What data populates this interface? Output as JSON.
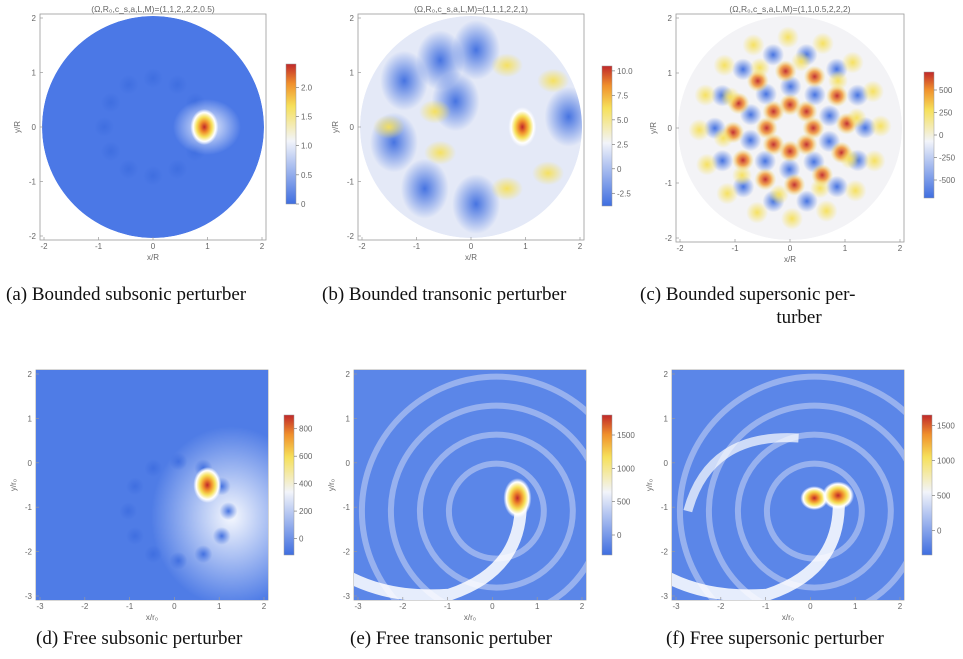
{
  "figures": [
    {
      "id": "a",
      "title": "(Ω,R₀,c_s,a,L,M)=(1,1,2,,2,2,0.5)",
      "caption_label": "(a)",
      "caption_text": "Bounded subsonic perturber",
      "domain_shape": "disk",
      "x_ticks": [
        "-2",
        "-1",
        "0",
        "1",
        "2"
      ],
      "y_ticks": [
        "2",
        "1",
        "0",
        "-1",
        "-2"
      ],
      "x_label": "x/R",
      "y_label": "y/R",
      "colorbar_ticks": [
        "2.0",
        "1.5",
        "1.0",
        "0.5",
        "0"
      ],
      "colorbar_range": [
        0,
        2.4
      ]
    },
    {
      "id": "b",
      "title": "(Ω,R₀,c_s,a,L,M)=(1,1,1,2,2,1)",
      "caption_label": "(b)",
      "caption_text": "Bounded transonic perturber",
      "domain_shape": "disk",
      "x_ticks": [
        "-2",
        "-1",
        "0",
        "1",
        "2"
      ],
      "y_ticks": [
        "2",
        "1",
        "0",
        "-1",
        "-2"
      ],
      "x_label": "x/R",
      "y_label": "y/R",
      "colorbar_ticks": [
        "10.0",
        "7.5",
        "5.0",
        "2.5",
        "0",
        "-2.5"
      ],
      "colorbar_range": [
        -3.8,
        10.5
      ]
    },
    {
      "id": "c",
      "title": "(Ω,R₀,c_s,a,L,M)=(1,1,0.5,2,2,2)",
      "caption_label": "(c)",
      "caption_text": "Bounded supersonic perturber",
      "caption_line1": "(c)   Bounded   supersonic   per-",
      "caption_line2": "turber",
      "domain_shape": "disk",
      "x_ticks": [
        "-2",
        "-1",
        "0",
        "1",
        "2"
      ],
      "y_ticks": [
        "2",
        "1",
        "0",
        "-1",
        "-2"
      ],
      "x_label": "x/R",
      "y_label": "y/R",
      "colorbar_ticks": [
        "500",
        "250",
        "0",
        "-250",
        "-500"
      ],
      "colorbar_range": [
        -700,
        700
      ]
    },
    {
      "id": "d",
      "caption_label": "(d)",
      "caption_text": "Free subsonic perturber",
      "domain_shape": "square",
      "x_ticks": [
        "-3",
        "-2",
        "-1",
        "0",
        "1",
        "2"
      ],
      "y_ticks": [
        "2",
        "1",
        "0",
        "-1",
        "-2",
        "-3"
      ],
      "x_label": "x/r₀",
      "y_label": "y/r₀",
      "colorbar_ticks": [
        "800",
        "600",
        "400",
        "200",
        "0"
      ],
      "colorbar_range": [
        -120,
        900
      ]
    },
    {
      "id": "e",
      "caption_label": "(e)",
      "caption_text": "Free transonic pertuber",
      "domain_shape": "square",
      "x_ticks": [
        "-3",
        "-2",
        "-1",
        "0",
        "1",
        "2"
      ],
      "y_ticks": [
        "2",
        "1",
        "0",
        "-1",
        "-2",
        "-3"
      ],
      "x_label": "x/r₀",
      "y_label": "y/r₀",
      "colorbar_ticks": [
        "1500",
        "1000",
        "500",
        "0"
      ],
      "colorbar_range": [
        -300,
        1800
      ]
    },
    {
      "id": "f",
      "caption_label": "(f)",
      "caption_text": "Free supersonic perturber",
      "domain_shape": "square",
      "x_ticks": [
        "-3",
        "-2",
        "-1",
        "0",
        "1",
        "2"
      ],
      "y_ticks": [
        "2",
        "1",
        "0",
        "-1",
        "-2",
        "-3"
      ],
      "x_label": "x/r₀",
      "y_label": "y/r₀",
      "colorbar_ticks": [
        "1500",
        "1000",
        "500",
        "0"
      ],
      "colorbar_range": [
        -350,
        1650
      ]
    }
  ],
  "colors": {
    "low": "#3f6ee0",
    "mid": "#f2f4fa",
    "high_yellow": "#f6e05a",
    "high_orange": "#f0902c",
    "top": "#c0282a",
    "frame": "#9a9a9a"
  }
}
